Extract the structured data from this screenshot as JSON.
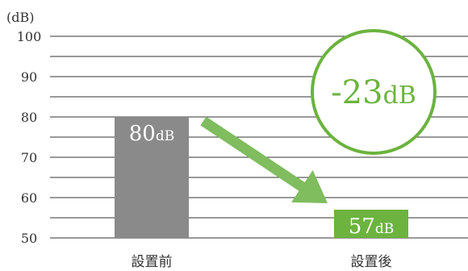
{
  "chart_data": {
    "type": "bar",
    "unit_label": "(dB)",
    "categories": [
      "設置前",
      "設置後"
    ],
    "values": [
      80,
      57
    ],
    "bar_labels": [
      {
        "number": "80",
        "unit": "dB"
      },
      {
        "number": "57",
        "unit": "dB"
      }
    ],
    "ylim": [
      50,
      100
    ],
    "yticks": [
      50,
      60,
      70,
      80,
      90,
      100
    ],
    "grid_step": 5,
    "grid": true,
    "colors": [
      "#8a8a8a",
      "#6cb33f"
    ],
    "arrow_color": "#7fbd5f",
    "annotation": {
      "number": "-23",
      "unit": "dB",
      "color": "#6cb33f"
    }
  }
}
